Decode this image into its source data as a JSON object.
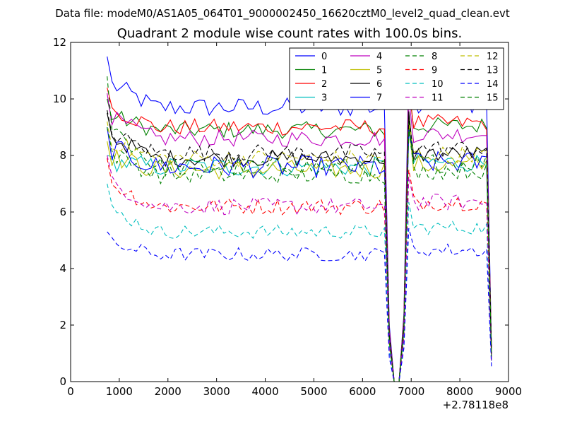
{
  "chart_data": {
    "type": "line",
    "suptitle": "Data file: modeM0/AS1A05_064T01_9000002450_16620cztM0_level2_quad_clean.evt",
    "title": "Quadrant 2 module wise count rates with 100.0s bins.",
    "xlabel": "",
    "ylabel": "",
    "x_offset_label": "+2.78118e8",
    "xlim": [
      0,
      9000
    ],
    "ylim": [
      0,
      12
    ],
    "xticks": [
      "0",
      "1000",
      "2000",
      "3000",
      "4000",
      "5000",
      "6000",
      "7000",
      "8000",
      "9000"
    ],
    "yticks": [
      "0",
      "2",
      "4",
      "6",
      "8",
      "10",
      "12"
    ],
    "x": [
      750,
      850,
      950,
      1050,
      1150,
      1250,
      1350,
      1450,
      1550,
      1650,
      1750,
      1850,
      1950,
      2050,
      2150,
      2250,
      2350,
      2450,
      2550,
      2650,
      2750,
      2850,
      2950,
      3050,
      3150,
      3250,
      3350,
      3450,
      3550,
      3650,
      3750,
      3850,
      3950,
      4050,
      4150,
      4250,
      4350,
      4450,
      4550,
      4650,
      4750,
      4850,
      4950,
      5050,
      5150,
      5250,
      5350,
      5450,
      5550,
      5650,
      5750,
      5850,
      5950,
      6050,
      6150,
      6250,
      6350,
      6450,
      6550,
      6650,
      6750,
      6850,
      6950,
      7050,
      7150,
      7250,
      7350,
      7450,
      7550,
      7650,
      7750,
      7850,
      7950,
      8050,
      8150,
      8250,
      8350,
      8450,
      8550,
      8650
    ],
    "series": [
      {
        "name": "0",
        "color": "#0000ff",
        "dash": "solid",
        "base": 9.7,
        "first": 11.5,
        "amp": 0.35
      },
      {
        "name": "1",
        "color": "#008000",
        "dash": "solid",
        "base": 8.9,
        "first": 10.0,
        "amp": 0.3
      },
      {
        "name": "2",
        "color": "#ff0000",
        "dash": "solid",
        "base": 9.0,
        "first": 10.4,
        "amp": 0.3
      },
      {
        "name": "3",
        "color": "#00bfbf",
        "dash": "solid",
        "base": 7.6,
        "first": 8.0,
        "amp": 0.35
      },
      {
        "name": "4",
        "color": "#bf00bf",
        "dash": "solid",
        "base": 8.6,
        "first": 10.2,
        "amp": 0.3
      },
      {
        "name": "5",
        "color": "#bfbf00",
        "dash": "solid",
        "base": 7.5,
        "first": 8.5,
        "amp": 0.35
      },
      {
        "name": "6",
        "color": "#000000",
        "dash": "solid",
        "base": 7.9,
        "first": 9.5,
        "amp": 0.3
      },
      {
        "name": "7",
        "color": "#0000ff",
        "dash": "solid",
        "base": 7.6,
        "first": 9.0,
        "amp": 0.4
      },
      {
        "name": "8",
        "color": "#008000",
        "dash": "dash",
        "base": 7.6,
        "first": 10.8,
        "amp": 0.35
      },
      {
        "name": "9",
        "color": "#ff0000",
        "dash": "dash",
        "base": 6.2,
        "first": 7.9,
        "amp": 0.3
      },
      {
        "name": "10",
        "color": "#00bfbf",
        "dash": "dash",
        "base": 5.3,
        "first": 7.0,
        "amp": 0.25
      },
      {
        "name": "11",
        "color": "#bf00bf",
        "dash": "dash",
        "base": 6.2,
        "first": 8.0,
        "amp": 0.3
      },
      {
        "name": "12",
        "color": "#bfbf00",
        "dash": "dash",
        "base": 7.9,
        "first": 9.2,
        "amp": 0.3
      },
      {
        "name": "13",
        "color": "#000000",
        "dash": "dash",
        "base": 8.1,
        "first": 9.6,
        "amp": 0.3
      },
      {
        "name": "14",
        "color": "#0000ff",
        "dash": "dash",
        "base": 4.5,
        "first": 5.3,
        "amp": 0.25
      },
      {
        "name": "15",
        "color": "#008000",
        "dash": "dash",
        "base": 7.3,
        "first": 9.0,
        "amp": 0.3
      }
    ],
    "dropouts": [
      {
        "x": 6550,
        "factor": 0.2
      },
      {
        "x": 6650,
        "factor": 0.0
      },
      {
        "x": 6750,
        "factor": 0.0
      },
      {
        "x": 6850,
        "factor": 0.25
      },
      {
        "x": 6950,
        "factor": 1.18
      },
      {
        "x": 8650,
        "factor": 0.12
      }
    ],
    "legend": {
      "location": "top-right",
      "columns": 4
    }
  }
}
